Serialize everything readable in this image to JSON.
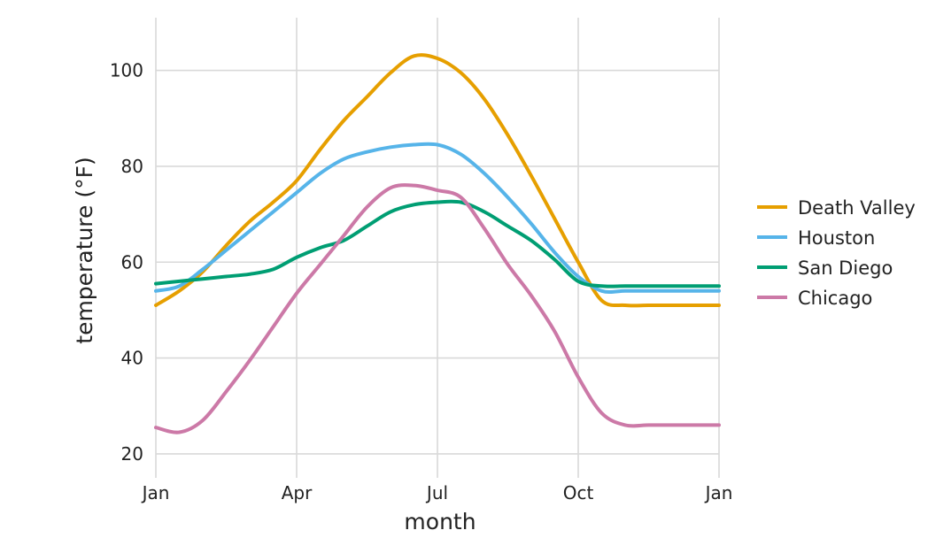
{
  "chart_data": {
    "type": "line",
    "title": "",
    "xlabel": "month",
    "ylabel": "temperature (°F)",
    "xlim": [
      1,
      13
    ],
    "ylim": [
      15,
      111
    ],
    "x_ticks": [
      {
        "value": 1,
        "label": "Jan"
      },
      {
        "value": 4,
        "label": "Apr"
      },
      {
        "value": 7,
        "label": "Jul"
      },
      {
        "value": 10,
        "label": "Oct"
      },
      {
        "value": 13,
        "label": "Jan"
      }
    ],
    "y_ticks": [
      20,
      40,
      60,
      80,
      100
    ],
    "grid": true,
    "legend_position": "right",
    "x": [
      1.0,
      1.5,
      2.0,
      2.5,
      3.0,
      3.5,
      4.0,
      4.5,
      5.0,
      5.5,
      6.0,
      6.5,
      7.0,
      7.5,
      8.0,
      8.5,
      9.0,
      9.5,
      10.0,
      10.5,
      11.0,
      11.5,
      12.0,
      12.5,
      13.0
    ],
    "series": [
      {
        "name": "Death Valley",
        "color": "#E69F00",
        "values": [
          51,
          54,
          58,
          63.5,
          68.5,
          72.5,
          77,
          83.5,
          89.5,
          94.5,
          99.5,
          103,
          102.5,
          99.5,
          94,
          86.5,
          78,
          69,
          60,
          52,
          51,
          51,
          51,
          51,
          51
        ]
      },
      {
        "name": "Houston",
        "color": "#56B4E9",
        "values": [
          54,
          55,
          58.5,
          62.5,
          66.5,
          70.5,
          74.5,
          78.5,
          81.5,
          83,
          84,
          84.5,
          84.5,
          82.5,
          78.5,
          73.5,
          68,
          62,
          57,
          54,
          54,
          54,
          54,
          54,
          54
        ]
      },
      {
        "name": "San Diego",
        "color": "#009E73",
        "values": [
          55.5,
          56,
          56.5,
          57,
          57.5,
          58.5,
          61,
          63,
          64.5,
          67.5,
          70.5,
          72,
          72.5,
          72.5,
          70.5,
          67.5,
          64.5,
          60.5,
          56,
          55,
          55,
          55,
          55,
          55,
          55
        ]
      },
      {
        "name": "Chicago",
        "color": "#CC79A7",
        "values": [
          25.5,
          24.5,
          27,
          33,
          39.5,
          46.5,
          53.5,
          59.5,
          65.5,
          71.5,
          75.5,
          76,
          75,
          73.5,
          67,
          59.5,
          53,
          45.5,
          36,
          28.5,
          26,
          26,
          26,
          26,
          26
        ]
      }
    ]
  }
}
